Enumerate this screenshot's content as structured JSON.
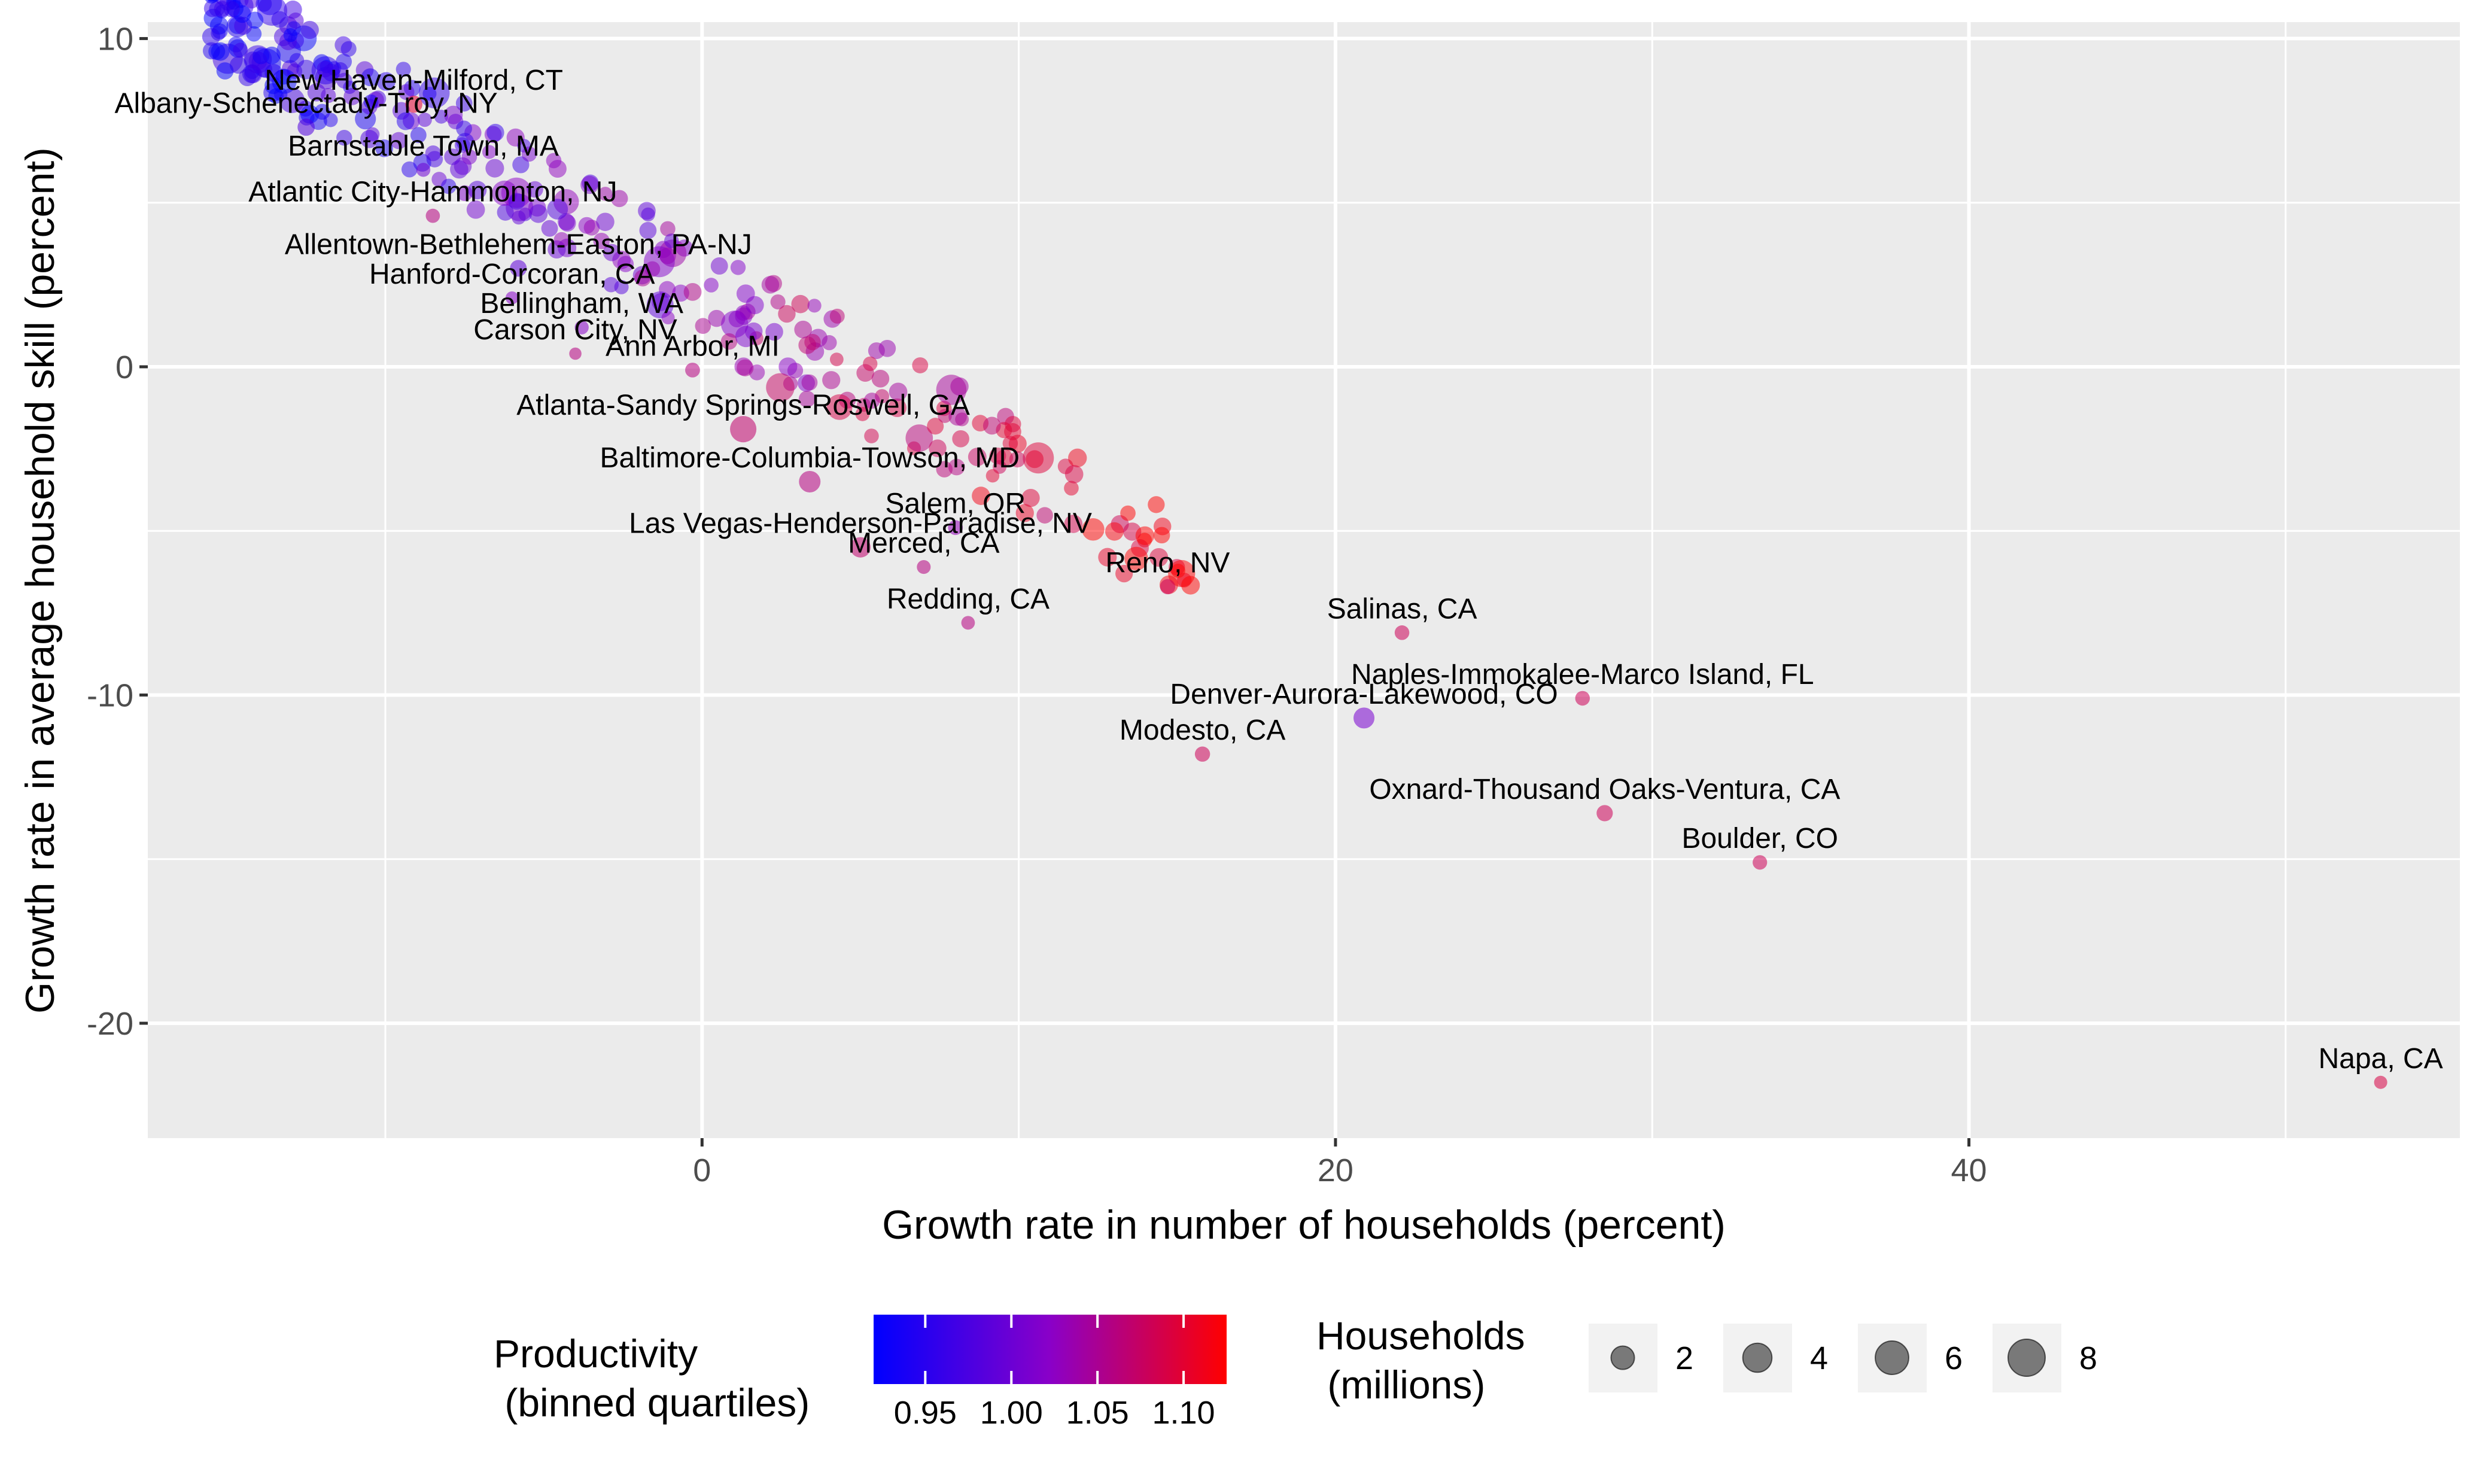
{
  "chart_data": {
    "type": "scatter",
    "xlabel": "Growth rate in number of households (percent)",
    "ylabel": "Growth rate in average household skill (percent)",
    "xlim": [
      -17.5,
      55.5
    ],
    "ylim": [
      -23.5,
      10.5
    ],
    "x_ticks": [
      0,
      20,
      40
    ],
    "y_ticks": [
      10,
      0,
      -10,
      -20
    ],
    "x_tick_labels": [
      "0",
      "20",
      "40"
    ],
    "y_tick_labels": [
      "10",
      "0",
      "-10",
      "-20"
    ],
    "grid": true,
    "background": "#ebebeb",
    "gridline_color": "#ffffff",
    "legend_position": "bottom",
    "color_legend": {
      "title_line1": "Productivity",
      "title_line2": " (binned quartiles)",
      "low_color": "#0000ff",
      "mid_color": "#8a00c8",
      "high_color": "#ff0000",
      "range": [
        0.92,
        1.125
      ],
      "ticks": [
        0.95,
        1.0,
        1.05,
        1.1
      ],
      "tick_labels": [
        "0.95",
        "1.00",
        "1.05",
        "1.10"
      ]
    },
    "size_legend": {
      "title_line1": "Households",
      "title_line2": " (millions)",
      "values": [
        2,
        4,
        6,
        8
      ],
      "labels": [
        "2",
        "4",
        "6",
        "8"
      ]
    },
    "labeled_points": [
      {
        "label": "New Haven-Milford, CT",
        "x": -9.1,
        "y": 8.0,
        "productivity": 1.1,
        "households": 0.35
      },
      {
        "label": "Albany-Schenectady-Troy, NY",
        "x": -12.5,
        "y": 7.3,
        "productivity": 0.98,
        "households": 0.36
      },
      {
        "label": "Barnstable Town, MA",
        "x": -8.8,
        "y": 6.0,
        "productivity": 1.0,
        "households": 0.09
      },
      {
        "label": "Atlantic City-Hammonton, NJ",
        "x": -8.5,
        "y": 4.6,
        "productivity": 1.06,
        "households": 0.1
      },
      {
        "label": "Allentown-Bethlehem-Easton, PA-NJ",
        "x": -5.8,
        "y": 3.0,
        "productivity": 0.99,
        "households": 0.31
      },
      {
        "label": "Hanford-Corcoran, CA",
        "x": -6.0,
        "y": 2.1,
        "productivity": 1.02,
        "households": 0.04
      },
      {
        "label": "Bellingham, WA",
        "x": -3.8,
        "y": 1.2,
        "productivity": 1.02,
        "households": 0.09
      },
      {
        "label": "Carson City, NV",
        "x": -4.0,
        "y": 0.4,
        "productivity": 1.06,
        "households": 0.02
      },
      {
        "label": "Ann Arbor, MI",
        "x": -0.3,
        "y": -0.1,
        "productivity": 1.06,
        "households": 0.14
      },
      {
        "label": "Atlanta-Sandy Springs-Roswell, GA",
        "x": 1.3,
        "y": -1.9,
        "productivity": 1.07,
        "households": 2.1
      },
      {
        "label": "Baltimore-Columbia-Towson, MD",
        "x": 3.4,
        "y": -3.5,
        "productivity": 1.06,
        "households": 1.0
      },
      {
        "label": "Salem, OR",
        "x": 8.0,
        "y": -4.9,
        "productivity": 1.03,
        "households": 0.14
      },
      {
        "label": "Las Vegas-Henderson-Paradise, NV",
        "x": 5.0,
        "y": -5.5,
        "productivity": 1.07,
        "households": 0.8
      },
      {
        "label": "Merced, CA",
        "x": 7.0,
        "y": -6.1,
        "productivity": 1.06,
        "households": 0.08
      },
      {
        "label": "Reno, NV",
        "x": 14.7,
        "y": -6.7,
        "productivity": 1.08,
        "households": 0.17
      },
      {
        "label": "Redding, CA",
        "x": 8.4,
        "y": -7.8,
        "productivity": 1.06,
        "households": 0.07
      },
      {
        "label": "Salinas, CA",
        "x": 22.1,
        "y": -8.1,
        "productivity": 1.08,
        "households": 0.13
      },
      {
        "label": "Naples-Immokalee-Marco Island, FL",
        "x": 27.8,
        "y": -10.1,
        "productivity": 1.08,
        "households": 0.13
      },
      {
        "label": "Denver-Aurora-Lakewood, CO",
        "x": 20.9,
        "y": -10.7,
        "productivity": 1.01,
        "households": 0.9
      },
      {
        "label": "Modesto, CA",
        "x": 15.8,
        "y": -11.8,
        "productivity": 1.08,
        "households": 0.17
      },
      {
        "label": "Oxnard-Thousand Oaks-Ventura, CA",
        "x": 28.5,
        "y": -13.6,
        "productivity": 1.08,
        "households": 0.26
      },
      {
        "label": "Boulder, CO",
        "x": 33.4,
        "y": -15.1,
        "productivity": 1.08,
        "households": 0.12
      },
      {
        "label": "Napa, CA",
        "x": 53.0,
        "y": -21.8,
        "productivity": 1.09,
        "households": 0.05
      }
    ]
  }
}
